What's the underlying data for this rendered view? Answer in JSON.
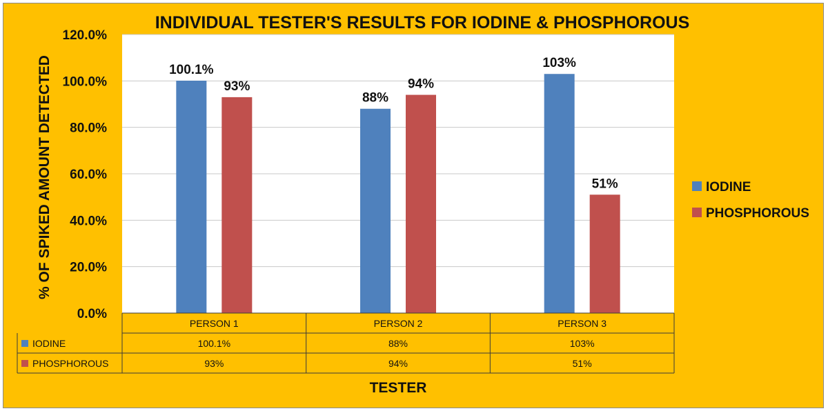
{
  "chart_data": {
    "type": "bar",
    "title": "INDIVIDUAL TESTER'S RESULTS FOR IODINE & PHOSPHOROUS",
    "xlabel": "TESTER",
    "ylabel": "% OF SPIKED AMOUNT DETECTED",
    "categories": [
      "PERSON 1",
      "PERSON 2",
      "PERSON 3"
    ],
    "series": [
      {
        "name": "IODINE",
        "values": [
          100.1,
          88,
          103
        ],
        "labels": [
          "100.1%",
          "88%",
          "103%"
        ],
        "color": "#4F81BD"
      },
      {
        "name": "PHOSPHOROUS",
        "values": [
          93,
          94,
          51
        ],
        "labels": [
          "93%",
          "94%",
          "51%"
        ],
        "color": "#C0504D"
      }
    ],
    "ylim": [
      0,
      120
    ],
    "yticks": [
      "0.0%",
      "20.0%",
      "40.0%",
      "60.0%",
      "80.0%",
      "100.0%",
      "120.0%"
    ],
    "grid": true,
    "legend_position": "right",
    "data_table": true,
    "colors": {
      "background": "#FFC000",
      "plot_area": "#FFFFFF",
      "gridline": "#C8C8C8"
    }
  }
}
